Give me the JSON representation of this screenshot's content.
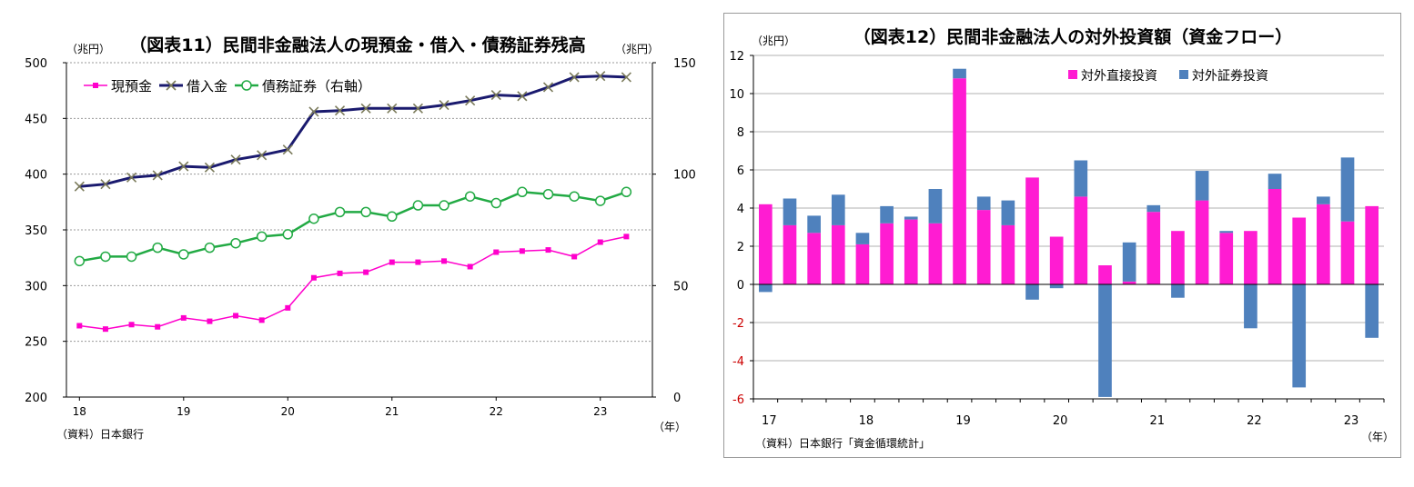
{
  "colors": {
    "cash": "#ff00cc",
    "borrowing": "#1a1a6e",
    "bonds": "#22aa44",
    "fdi": "#ff1cd2",
    "portfolio": "#4f81bd",
    "grid": "#999999",
    "negative_tick": "#cc0000"
  },
  "chart_data": [
    {
      "type": "line",
      "title": "（図表11）民間非金融法人の現預金・借入・債務証券残高",
      "left_unit": "（兆円）",
      "right_unit": "（兆円）",
      "x_unit": "（年）",
      "source": "（資料）日本銀行",
      "x_tick_labels": [
        "18",
        "19",
        "20",
        "21",
        "22",
        "23"
      ],
      "ylim_left": [
        200,
        500
      ],
      "y_ticks_left": [
        "200",
        "250",
        "300",
        "350",
        "400",
        "450",
        "500"
      ],
      "ylim_right": [
        0,
        150
      ],
      "y_ticks_right": [
        "0",
        "50",
        "100",
        "150"
      ],
      "grid": true,
      "legend_position": "top-left",
      "legend": [
        "現預金",
        "借入金",
        "債務証券（右軸）"
      ],
      "series": [
        {
          "name": "現預金",
          "axis": "left",
          "marker": "square",
          "values": [
            264,
            261,
            265,
            263,
            271,
            268,
            273,
            269,
            280,
            307,
            311,
            312,
            321,
            321,
            322,
            317,
            330,
            331,
            332,
            326,
            339,
            344
          ]
        },
        {
          "name": "借入金",
          "axis": "left",
          "marker": "x",
          "values": [
            389,
            391,
            397,
            399,
            407,
            406,
            413,
            417,
            422,
            456,
            457,
            459,
            459,
            459,
            462,
            466,
            471,
            470,
            478,
            487,
            488,
            487
          ]
        },
        {
          "name": "債務証券（右軸）",
          "axis": "right",
          "marker": "circle",
          "values": [
            61,
            63,
            63,
            67,
            64,
            67,
            69,
            72,
            73,
            80,
            83,
            83,
            81,
            86,
            86,
            90,
            87,
            92,
            91,
            90,
            88,
            92
          ]
        }
      ]
    },
    {
      "type": "bar",
      "stacked": true,
      "title": "（図表12）民間非金融法人の対外投資額（資金フロー）",
      "y_unit": "（兆円）",
      "x_unit": "（年）",
      "source": "（資料）日本銀行「資金循環統計」",
      "x_tick_labels": [
        "17",
        "18",
        "19",
        "20",
        "21",
        "22",
        "23"
      ],
      "ylim": [
        -6,
        12
      ],
      "y_ticks": [
        "-6",
        "-4",
        "-2",
        "0",
        "2",
        "4",
        "6",
        "8",
        "10",
        "12"
      ],
      "grid": true,
      "legend_position": "top-right",
      "legend": [
        "対外直接投資",
        "対外証券投資"
      ],
      "series": [
        {
          "name": "対外直接投資",
          "values": [
            4.2,
            3.1,
            2.7,
            3.1,
            2.1,
            3.2,
            3.4,
            3.2,
            10.8,
            3.9,
            3.1,
            5.6,
            2.5,
            4.6,
            1.0,
            0.15,
            3.8,
            2.8,
            4.4,
            2.7,
            2.8,
            5.0,
            3.5,
            4.2,
            3.3,
            4.1
          ]
        },
        {
          "name": "対外証券投資",
          "values": [
            -0.4,
            1.4,
            0.9,
            1.6,
            0.6,
            0.9,
            0.15,
            1.8,
            0.5,
            0.7,
            1.3,
            -0.8,
            -0.2,
            1.9,
            -5.9,
            2.05,
            0.35,
            -0.7,
            1.55,
            0.1,
            -2.3,
            0.8,
            -5.4,
            0.4,
            3.35,
            -2.8
          ]
        }
      ]
    }
  ]
}
